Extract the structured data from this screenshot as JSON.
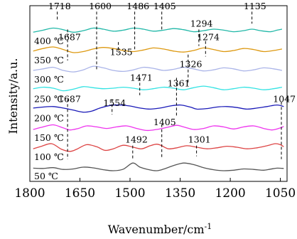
{
  "chart_data": {
    "type": "line",
    "title": "",
    "xlabel": "Wavenumber/cm",
    "xlabel_sup": "-1",
    "ylabel": "Intensity/a.u.",
    "xlim": [
      1800,
      1030
    ],
    "x_reversed": true,
    "xticks": [
      1800,
      1650,
      1500,
      1350,
      1200,
      1050
    ],
    "grid": false,
    "legend": "none",
    "series": [
      {
        "name": "50 ℃",
        "color": "#555555",
        "points": [
          [
            1790,
            0.1
          ],
          [
            1760,
            0.09
          ],
          [
            1730,
            0.12
          ],
          [
            1700,
            0.05
          ],
          [
            1670,
            0.07
          ],
          [
            1640,
            0.14
          ],
          [
            1610,
            0.11
          ],
          [
            1580,
            0.04
          ],
          [
            1550,
            0.0
          ],
          [
            1520,
            0.06
          ],
          [
            1492,
            0.3
          ],
          [
            1470,
            0.14
          ],
          [
            1440,
            0.03
          ],
          [
            1420,
            0.0
          ],
          [
            1400,
            0.06
          ],
          [
            1370,
            0.2
          ],
          [
            1340,
            0.3
          ],
          [
            1310,
            0.24
          ],
          [
            1280,
            0.12
          ],
          [
            1250,
            0.04
          ],
          [
            1220,
            0.0
          ],
          [
            1190,
            0.02
          ],
          [
            1160,
            0.07
          ],
          [
            1130,
            0.05
          ],
          [
            1100,
            0.02
          ],
          [
            1080,
            0.06
          ],
          [
            1060,
            0.1
          ],
          [
            1040,
            0.09
          ]
        ]
      },
      {
        "name": "100 ℃",
        "color": "#dd4444",
        "points": [
          [
            1790,
            0.1
          ],
          [
            1765,
            0.2
          ],
          [
            1735,
            0.3
          ],
          [
            1705,
            0.08
          ],
          [
            1680,
            0.0
          ],
          [
            1660,
            0.08
          ],
          [
            1630,
            0.26
          ],
          [
            1600,
            0.18
          ],
          [
            1575,
            0.04
          ],
          [
            1550,
            0.1
          ],
          [
            1520,
            0.24
          ],
          [
            1490,
            0.16
          ],
          [
            1465,
            0.1
          ],
          [
            1440,
            0.22
          ],
          [
            1420,
            0.28
          ],
          [
            1405,
            0.22
          ],
          [
            1385,
            0.1
          ],
          [
            1360,
            0.14
          ],
          [
            1330,
            0.22
          ],
          [
            1300,
            0.16
          ],
          [
            1270,
            0.1
          ],
          [
            1240,
            0.14
          ],
          [
            1210,
            0.2
          ],
          [
            1180,
            0.16
          ],
          [
            1150,
            0.1
          ],
          [
            1120,
            0.14
          ],
          [
            1090,
            0.22
          ],
          [
            1065,
            0.3
          ],
          [
            1050,
            0.26
          ],
          [
            1040,
            0.18
          ]
        ]
      },
      {
        "name": "150 ℃",
        "color": "#ee33ee",
        "points": [
          [
            1790,
            0.1
          ],
          [
            1760,
            0.2
          ],
          [
            1730,
            0.28
          ],
          [
            1700,
            0.16
          ],
          [
            1680,
            0.08
          ],
          [
            1655,
            0.14
          ],
          [
            1630,
            0.24
          ],
          [
            1600,
            0.2
          ],
          [
            1570,
            0.14
          ],
          [
            1540,
            0.2
          ],
          [
            1510,
            0.24
          ],
          [
            1480,
            0.14
          ],
          [
            1450,
            0.06
          ],
          [
            1420,
            0.1
          ],
          [
            1390,
            0.18
          ],
          [
            1361,
            0.26
          ],
          [
            1340,
            0.2
          ],
          [
            1310,
            0.1
          ],
          [
            1280,
            0.14
          ],
          [
            1250,
            0.24
          ],
          [
            1220,
            0.2
          ],
          [
            1190,
            0.12
          ],
          [
            1160,
            0.2
          ],
          [
            1130,
            0.24
          ],
          [
            1100,
            0.14
          ],
          [
            1075,
            0.08
          ],
          [
            1050,
            0.16
          ],
          [
            1040,
            0.22
          ]
        ]
      },
      {
        "name": "200 ℃",
        "color": "#1a1ab8",
        "points": [
          [
            1790,
            0.18
          ],
          [
            1760,
            0.22
          ],
          [
            1730,
            0.24
          ],
          [
            1700,
            0.18
          ],
          [
            1670,
            0.1
          ],
          [
            1640,
            0.02
          ],
          [
            1615,
            0.06
          ],
          [
            1590,
            0.18
          ],
          [
            1560,
            0.28
          ],
          [
            1530,
            0.3
          ],
          [
            1500,
            0.26
          ],
          [
            1470,
            0.18
          ],
          [
            1440,
            0.14
          ],
          [
            1410,
            0.18
          ],
          [
            1380,
            0.26
          ],
          [
            1350,
            0.3
          ],
          [
            1320,
            0.22
          ],
          [
            1300,
            0.14
          ],
          [
            1270,
            0.16
          ],
          [
            1240,
            0.22
          ],
          [
            1210,
            0.24
          ],
          [
            1180,
            0.2
          ],
          [
            1150,
            0.14
          ],
          [
            1120,
            0.18
          ],
          [
            1090,
            0.24
          ],
          [
            1060,
            0.3
          ],
          [
            1040,
            0.24
          ]
        ]
      },
      {
        "name": "250 ℃",
        "color": "#33e3e3",
        "points": [
          [
            1790,
            0.18
          ],
          [
            1760,
            0.24
          ],
          [
            1730,
            0.2
          ],
          [
            1700,
            0.1
          ],
          [
            1670,
            0.16
          ],
          [
            1640,
            0.26
          ],
          [
            1610,
            0.22
          ],
          [
            1580,
            0.18
          ],
          [
            1550,
            0.2
          ],
          [
            1520,
            0.24
          ],
          [
            1490,
            0.2
          ],
          [
            1460,
            0.14
          ],
          [
            1430,
            0.18
          ],
          [
            1400,
            0.24
          ],
          [
            1370,
            0.2
          ],
          [
            1340,
            0.14
          ],
          [
            1310,
            0.22
          ],
          [
            1280,
            0.28
          ],
          [
            1250,
            0.22
          ],
          [
            1220,
            0.14
          ],
          [
            1190,
            0.18
          ],
          [
            1160,
            0.24
          ],
          [
            1130,
            0.2
          ],
          [
            1100,
            0.14
          ],
          [
            1070,
            0.18
          ],
          [
            1045,
            0.24
          ]
        ]
      },
      {
        "name": "300 ℃",
        "color": "#aab4e8",
        "points": [
          [
            1790,
            0.14
          ],
          [
            1760,
            0.2
          ],
          [
            1730,
            0.26
          ],
          [
            1700,
            0.14
          ],
          [
            1670,
            0.08
          ],
          [
            1640,
            0.16
          ],
          [
            1610,
            0.3
          ],
          [
            1580,
            0.24
          ],
          [
            1550,
            0.14
          ],
          [
            1520,
            0.1
          ],
          [
            1490,
            0.16
          ],
          [
            1460,
            0.26
          ],
          [
            1430,
            0.22
          ],
          [
            1400,
            0.14
          ],
          [
            1370,
            0.18
          ],
          [
            1340,
            0.26
          ],
          [
            1310,
            0.2
          ],
          [
            1280,
            0.12
          ],
          [
            1250,
            0.16
          ],
          [
            1220,
            0.24
          ],
          [
            1190,
            0.2
          ],
          [
            1160,
            0.12
          ],
          [
            1130,
            0.16
          ],
          [
            1100,
            0.24
          ],
          [
            1070,
            0.2
          ],
          [
            1045,
            0.14
          ]
        ]
      },
      {
        "name": "350 ℃",
        "color": "#dd9911",
        "points": [
          [
            1790,
            0.14
          ],
          [
            1760,
            0.24
          ],
          [
            1730,
            0.3
          ],
          [
            1700,
            0.2
          ],
          [
            1670,
            0.08
          ],
          [
            1640,
            0.12
          ],
          [
            1610,
            0.22
          ],
          [
            1580,
            0.28
          ],
          [
            1550,
            0.24
          ],
          [
            1520,
            0.16
          ],
          [
            1490,
            0.12
          ],
          [
            1460,
            0.18
          ],
          [
            1430,
            0.26
          ],
          [
            1400,
            0.22
          ],
          [
            1370,
            0.14
          ],
          [
            1340,
            0.1
          ],
          [
            1310,
            0.16
          ],
          [
            1280,
            0.26
          ],
          [
            1250,
            0.2
          ],
          [
            1220,
            0.12
          ],
          [
            1190,
            0.16
          ],
          [
            1160,
            0.24
          ],
          [
            1130,
            0.2
          ],
          [
            1100,
            0.12
          ],
          [
            1070,
            0.16
          ],
          [
            1045,
            0.22
          ]
        ]
      },
      {
        "name": "400 ℃",
        "color": "#22b8a8",
        "points": [
          [
            1790,
            0.12
          ],
          [
            1760,
            0.2
          ],
          [
            1730,
            0.28
          ],
          [
            1700,
            0.22
          ],
          [
            1670,
            0.12
          ],
          [
            1640,
            0.18
          ],
          [
            1610,
            0.28
          ],
          [
            1580,
            0.24
          ],
          [
            1550,
            0.16
          ],
          [
            1520,
            0.2
          ],
          [
            1490,
            0.28
          ],
          [
            1460,
            0.24
          ],
          [
            1430,
            0.16
          ],
          [
            1400,
            0.2
          ],
          [
            1370,
            0.26
          ],
          [
            1340,
            0.22
          ],
          [
            1310,
            0.14
          ],
          [
            1280,
            0.18
          ],
          [
            1250,
            0.24
          ],
          [
            1220,
            0.2
          ],
          [
            1190,
            0.14
          ],
          [
            1160,
            0.18
          ],
          [
            1135,
            0.24
          ],
          [
            1110,
            0.18
          ],
          [
            1080,
            0.14
          ],
          [
            1060,
            0.2
          ],
          [
            1045,
            0.24
          ]
        ]
      }
    ],
    "annotations": [
      {
        "label": "1718",
        "x": 1718,
        "y0": 8.22,
        "y1": 7.72,
        "label_x": 1745,
        "label_y": 8.35
      },
      {
        "label": "1600",
        "x": 1600,
        "y0": 8.22,
        "y1": 5.2,
        "label_x": 1623,
        "label_y": 8.35
      },
      {
        "label": "1486",
        "x": 1486,
        "y0": 8.22,
        "y1": 6.28,
        "label_x": 1510,
        "label_y": 8.35
      },
      {
        "label": "1405",
        "x": 1405,
        "y0": 8.22,
        "y1": 7.3,
        "label_x": 1430,
        "label_y": 8.35
      },
      {
        "label": "1135",
        "x": 1135,
        "y0": 8.22,
        "y1": 7.6,
        "label_x": 1160,
        "label_y": 8.35
      },
      {
        "label": "1294",
        "x": 1294,
        "y0": 7.3,
        "y1": 6.45,
        "label_x": 1320,
        "label_y": 7.45
      },
      {
        "label": "1687",
        "x": 1687,
        "y0": 7.3,
        "y1": 5.7,
        "label_x": 1715,
        "label_y": 6.75
      },
      {
        "label": "1274",
        "x": 1274,
        "y0": 6.7,
        "y1": 5.9,
        "label_x": 1300,
        "label_y": 6.75
      },
      {
        "label": "1535",
        "x": 1535,
        "y0": 6.65,
        "y1": 6.1,
        "label_x": 1560,
        "label_y": 5.98
      },
      {
        "label": "1326",
        "x": 1326,
        "y0": 6.0,
        "y1": 4.5,
        "label_x": 1352,
        "label_y": 5.35
      },
      {
        "label": "1471",
        "x": 1471,
        "y0": 4.8,
        "y1": 3.9,
        "label_x": 1500,
        "label_y": 4.65
      },
      {
        "label": "1361",
        "x": 1361,
        "y0": 4.8,
        "y1": 2.8,
        "label_x": 1388,
        "label_y": 4.35
      },
      {
        "label": "1687",
        "x": 1687,
        "y0": 3.7,
        "y1": 0.6,
        "label_x": 1715,
        "label_y": 3.55
      },
      {
        "label": "1554",
        "x": 1554,
        "y0": 3.7,
        "y1": 2.9,
        "label_x": 1580,
        "label_y": 3.35
      },
      {
        "label": "1047",
        "x": 1047,
        "y0": 3.55,
        "y1": 0.6,
        "label_x": 1072,
        "label_y": 3.55
      },
      {
        "label": "1405",
        "x": 1405,
        "y0": 2.4,
        "y1": 0.6,
        "label_x": 1430,
        "label_y": 2.35
      },
      {
        "label": "1492",
        "x": 1492,
        "y0": 1.3,
        "y1": 0.55,
        "label_x": 1515,
        "label_y": 1.45
      },
      {
        "label": "1301",
        "x": 1301,
        "y0": 1.3,
        "y1": 0.75,
        "label_x": 1326,
        "label_y": 1.45
      }
    ]
  }
}
